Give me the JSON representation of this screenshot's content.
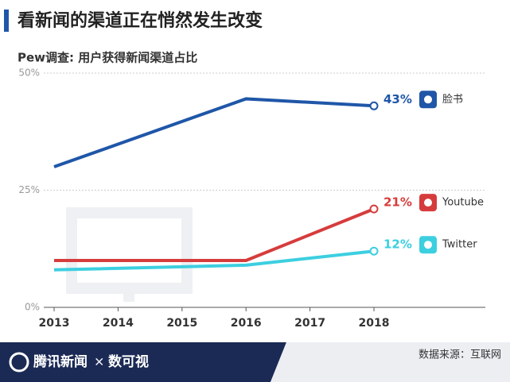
{
  "chart_data": {
    "type": "line",
    "title": "看新闻的渠道正在悄然发生改变",
    "subtitle": "Pew调查: 用户获得新闻渠道占比",
    "x": [
      2013,
      2016,
      2018
    ],
    "xlim": [
      2013,
      2018
    ],
    "xticks": [
      2013,
      2014,
      2015,
      2016,
      2017,
      2018
    ],
    "ylim": [
      0,
      50
    ],
    "yticks": [
      {
        "value": 0,
        "label": "0%"
      },
      {
        "value": 25,
        "label": "25%"
      },
      {
        "value": 50,
        "label": "50%"
      }
    ],
    "grid": true,
    "series": [
      {
        "name": "脸书",
        "color": "#1f56a8",
        "values": [
          30,
          44.5,
          43
        ],
        "value_labels": [
          null,
          null,
          "43%"
        ]
      },
      {
        "name": "Youtube",
        "color": "#d63c3c",
        "values": [
          10,
          10,
          21
        ],
        "value_labels": [
          null,
          null,
          "21%"
        ]
      },
      {
        "name": "Twitter",
        "color": "#3ccfe0",
        "values": [
          8,
          9,
          12
        ],
        "value_labels": [
          null,
          null,
          "12%"
        ]
      }
    ],
    "footer": {
      "brand": "腾讯新闻",
      "partner": "数可视",
      "source": "数据来源：互联网"
    }
  }
}
